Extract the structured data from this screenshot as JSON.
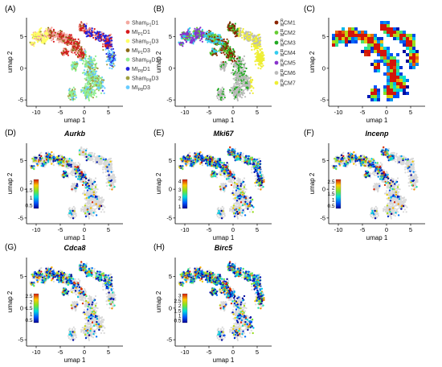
{
  "axes": {
    "xlabel": "umap 1",
    "ylabel": "umap 2",
    "xlim": [
      -12,
      8
    ],
    "ylim": [
      -6,
      8
    ],
    "xticks": [
      -10,
      -5,
      0,
      5
    ],
    "yticks": [
      -5,
      0,
      5
    ]
  },
  "chart_data": [
    {
      "panel": "A",
      "type": "scatter",
      "legend_placement": "right",
      "legend": [
        {
          "label": "Sham",
          "sub": "P1",
          "tail": "D1",
          "color": "#f3a9a0"
        },
        {
          "label": "MI",
          "sub": "P1",
          "tail": "D1",
          "color": "#d7191c"
        },
        {
          "label": "Sham",
          "sub": "P1",
          "tail": "D3",
          "color": "#ffff66"
        },
        {
          "label": "MI",
          "sub": "P1",
          "tail": "D3",
          "color": "#8b6914"
        },
        {
          "label": "Sham",
          "sub": "P8",
          "tail": "D1",
          "color": "#90ee90"
        },
        {
          "label": "MI",
          "sub": "P8",
          "tail": "D1",
          "color": "#2222dd"
        },
        {
          "label": "Sham",
          "sub": "P8",
          "tail": "D3",
          "color": "#a0a040"
        },
        {
          "label": "MI",
          "sub": "P8",
          "tail": "D3",
          "color": "#66ccff"
        }
      ]
    },
    {
      "panel": "B",
      "type": "scatter",
      "legend_placement": "right",
      "legend": [
        {
          "label": "CM1",
          "color": "#8b2500"
        },
        {
          "label": "CM2",
          "color": "#66cc33"
        },
        {
          "label": "CM3",
          "color": "#22aa22"
        },
        {
          "label": "CM4",
          "color": "#33ccee"
        },
        {
          "label": "CM5",
          "color": "#8833cc"
        },
        {
          "label": "CM6",
          "color": "#bbbbbb"
        },
        {
          "label": "CM7",
          "color": "#eeee33"
        }
      ],
      "legend_prefix_top": "R",
      "legend_prefix_bottom": "M"
    },
    {
      "panel": "C",
      "type": "heatmap"
    },
    {
      "panel": "D",
      "type": "scatter",
      "gene": "Aurkb",
      "colorbar_ticks": [
        "2",
        "1.5",
        "1",
        "0.5"
      ],
      "colorbar_range": [
        0.3,
        2.2
      ]
    },
    {
      "panel": "E",
      "type": "scatter",
      "gene": "Mki67",
      "colorbar_ticks": [
        "4",
        "3",
        "2",
        "1"
      ],
      "colorbar_range": [
        0.8,
        4.2
      ]
    },
    {
      "panel": "F",
      "type": "scatter",
      "gene": "Incenp",
      "colorbar_ticks": [
        "2.5",
        "2",
        "1.5",
        "1",
        "0.5"
      ],
      "colorbar_range": [
        0.3,
        2.7
      ]
    },
    {
      "panel": "G",
      "type": "scatter",
      "gene": "Cdca8",
      "colorbar_ticks": [
        "2.5",
        "2",
        "1.5",
        "1",
        "0.5"
      ],
      "colorbar_range": [
        0.3,
        2.7
      ]
    },
    {
      "panel": "H",
      "type": "scatter",
      "gene": "Birc5",
      "colorbar_ticks": [
        "3",
        "2.5",
        "2",
        "1.5",
        "1",
        "0.5"
      ],
      "colorbar_range": [
        0.3,
        3.2
      ]
    }
  ],
  "panel_labels": [
    "(A)",
    "(B)",
    "(C)",
    "(D)",
    "(E)",
    "(F)",
    "(G)",
    "(H)"
  ]
}
